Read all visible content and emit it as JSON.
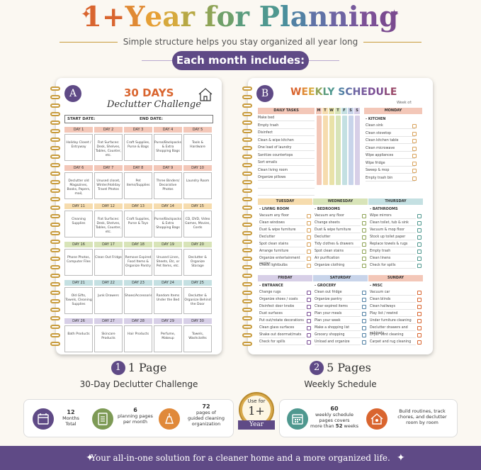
{
  "header": {
    "title_chars": [
      {
        "t": "1",
        "c": "#d9652f"
      },
      {
        "t": "+",
        "c": "#d9652f"
      },
      {
        "t": "Y",
        "c": "#e08a34"
      },
      {
        "t": "e",
        "c": "#e6a037"
      },
      {
        "t": "a",
        "c": "#d6a93d"
      },
      {
        "t": "r",
        "c": "#b7a844"
      },
      {
        "t": " ",
        "c": "#000"
      },
      {
        "t": "f",
        "c": "#8fa457"
      },
      {
        "t": "o",
        "c": "#6fa06a"
      },
      {
        "t": "r",
        "c": "#5b9c7e"
      },
      {
        "t": " ",
        "c": "#000"
      },
      {
        "t": "P",
        "c": "#4f988f"
      },
      {
        "t": "l",
        "c": "#4b8f9c"
      },
      {
        "t": "a",
        "c": "#5281a4"
      },
      {
        "t": "n",
        "c": "#6072a6"
      },
      {
        "t": "n",
        "c": "#6d64a2"
      },
      {
        "t": "i",
        "c": "#76599c"
      },
      {
        "t": "n",
        "c": "#7c5096"
      },
      {
        "t": "g",
        "c": "#7a4b90"
      }
    ],
    "subtitle": "Simple structure helps you stay organized all year long",
    "pill": "Each month includes:"
  },
  "bookA": {
    "badge": "A",
    "title": "30 DAYS",
    "subtitle": "Declutter Challenge",
    "start_label": "START DATE:",
    "end_label": "END DATE:",
    "rows": [
      {
        "color": "#f3c7b8",
        "days": [
          "DAY 1",
          "DAY 2",
          "DAY 3",
          "DAY 4",
          "DAY 5"
        ],
        "tasks": [
          "Holiday Closet / Entryway",
          "Flat Surfaces: Desk, Shelves, Tables, Counter, etc.",
          "Craft Supplies, Purse & Bags",
          "Purse/Backpacks & Extra Shopping Bags",
          "Tools & Hardware"
        ]
      },
      {
        "color": "#f3c7b8",
        "days": [
          "DAY 6",
          "DAY 7",
          "DAY 8",
          "DAY 9",
          "DAY 10"
        ],
        "tasks": [
          "Declutter old Magazines, Books, Papers, mail,",
          "Unused closet, Winter/Holiday Travel Photos",
          "Pet items/Supplies",
          "Three Binders/ Decorative Photos",
          "Laundry Room"
        ]
      },
      {
        "color": "#f6dcae",
        "days": [
          "DAY 11",
          "DAY 12",
          "DAY 13",
          "DAY 14",
          "DAY 15"
        ],
        "tasks": [
          "Cleaning Supplies",
          "Flat Surfaces: Desk, Shelves, Tables, Counter, etc.",
          "Craft Supplies, Purse & Toys",
          "Purse/Backpacks & Extra Shopping Bags",
          "CD, DVD, Video Games, Movies, Cords"
        ]
      },
      {
        "color": "#d8e4b8",
        "days": [
          "DAY 16",
          "DAY 17",
          "DAY 18",
          "DAY 19",
          "DAY 20"
        ],
        "tasks": [
          "Phone Photos, Computer Files",
          "Clean Out Fridge",
          "Remove Expired Food Items & Organize Pantry",
          "Unused Linen, Sheets, Etc, or Pet Items, etc.",
          "Declutter & Organize Storage"
        ]
      },
      {
        "color": "#c4e0e2",
        "days": [
          "DAY 21",
          "DAY 22",
          "DAY 23",
          "DAY 24",
          "DAY 25"
        ],
        "tasks": [
          "Old Gifts, Towels, Cleaning Supplies",
          "Junk Drawers",
          "Shoes/Accessories",
          "Random Items Under the Bed",
          "Declutter & Organize Behind the Door"
        ]
      },
      {
        "color": "#d7cfe7",
        "days": [
          "DAY 26",
          "DAY 27",
          "DAY 28",
          "DAY 29",
          "DAY 30"
        ],
        "tasks": [
          "Bath Products",
          "Skincare Products",
          "Hair Products",
          "Perfume, Makeup",
          "Towels, Washcloths"
        ]
      }
    ]
  },
  "bookB": {
    "badge": "B",
    "title_chars": [
      {
        "t": "W",
        "c": "#d9652f"
      },
      {
        "t": "E",
        "c": "#e08a34"
      },
      {
        "t": "E",
        "c": "#d6a93d"
      },
      {
        "t": "K",
        "c": "#8fa457"
      },
      {
        "t": "L",
        "c": "#5b9c7e"
      },
      {
        "t": "Y",
        "c": "#4f988f"
      },
      {
        "t": " ",
        "c": "#000"
      },
      {
        "t": "S",
        "c": "#5281a4"
      },
      {
        "t": "C",
        "c": "#6072a6"
      },
      {
        "t": "H",
        "c": "#6d64a2"
      },
      {
        "t": "E",
        "c": "#76599c"
      },
      {
        "t": "D",
        "c": "#7c5096"
      },
      {
        "t": "U",
        "c": "#7a4b90"
      },
      {
        "t": "L",
        "c": "#8a4a7a"
      },
      {
        "t": "E",
        "c": "#9a4a6a"
      }
    ],
    "week_of": "Week of:",
    "daily_header": "DAILY TASKS",
    "weekdays": [
      "M",
      "T",
      "W",
      "T",
      "F",
      "S",
      "S"
    ],
    "weekday_colors": [
      "#f3c7b8",
      "#f6dcae",
      "#e9e2a8",
      "#d8e4b8",
      "#c4e0e2",
      "#c8d4ea",
      "#d7cfe7"
    ],
    "daily_tasks": [
      "Make bed",
      "Empty trash",
      "Disinfect",
      "Clean & wipe kitchen",
      "One load of laundry",
      "Sanitize countertops",
      "Sort emails",
      "Clean living room",
      "Organize pillows"
    ],
    "monday": {
      "label": "MONDAY",
      "sub": "- KITCHEN",
      "items": [
        "Clean sink",
        "Clean stovetop",
        "Clean kitchen table",
        "Clean microwave",
        "Wipe appliances",
        "Wipe fridge",
        "Sweep & mop",
        "Empty trash bin"
      ]
    },
    "tuesday": {
      "label": "TUESDAY",
      "sub": "- LIVING ROOM",
      "items": [
        "Vacuum any floor",
        "Clean windows",
        "Dust & wipe furniture",
        "Declutter",
        "Spot clean stains",
        "Arrange furniture",
        "Organize entertainment center",
        "Check lightbulbs"
      ]
    },
    "wednesday": {
      "label": "WEDNESDAY",
      "sub": "- BEDROOMS",
      "items": [
        "Vacuum any floor",
        "Change sheets",
        "Dust & wipe furniture",
        "Declutter",
        "Tidy clothes & drawers",
        "Spot clean stains",
        "Air purification",
        "Organize clothing"
      ]
    },
    "thursday": {
      "label": "THURSDAY",
      "sub": "- BATHROOMS",
      "items": [
        "Wipe mirrors",
        "Clean toilet, tub & sink",
        "Vacuum & mop floor",
        "Stock up toilet paper",
        "Replace towels & rugs",
        "Empty trash",
        "Clean linens",
        "Check for spills"
      ]
    },
    "friday": {
      "label": "FRIDAY",
      "sub": "- ENTRANCE",
      "items": [
        "Change rugs",
        "Organize shoes / coats",
        "Disinfect door knobs",
        "Dust surfaces",
        "Put out/rotate decorations",
        "Clean glass surfaces",
        "Shake out doormat/mats",
        "Check for spills"
      ]
    },
    "saturday": {
      "label": "SATURDAY",
      "sub": "- GROCERY",
      "items": [
        "Clean out fridge",
        "Organize pantry",
        "Clear expired items",
        "Plan your meals",
        "Plan your week",
        "Make a shopping list",
        "Grocery shopping",
        "Unload and organize"
      ]
    },
    "sunday": {
      "label": "SUNDAY",
      "sub": "- MISC",
      "items": [
        "Vacuum car",
        "Clean blinds",
        "Clean hallways",
        "Play list / rewind",
        "Under furniture cleaning",
        "Declutter drawers and cabinets",
        "Dryer vent cleaning",
        "Carpet and rug cleaning"
      ]
    }
  },
  "captions": {
    "a_num": "1",
    "a_big": "1 Page",
    "a_small": "30-Day Declutter Challenge",
    "b_num": "2",
    "b_big": "5 Pages",
    "b_small": "Weekly Schedule"
  },
  "stats": {
    "s1_num": "12",
    "s1_text": "Months Total",
    "s2_num": "6",
    "s2_text1": "planning pages",
    "s2_text2": "per month",
    "s3_num": "72",
    "s3_text1": "pages of",
    "s3_text2": "guided cleaning",
    "s3_text3": "organization",
    "medal_top": "Use for",
    "medal_mid": "1+",
    "medal_bottom": "Year",
    "s4_num": "60",
    "s4_text1": "weekly schedule",
    "s4_text2": "pages covers",
    "s4_text3_a": "more than ",
    "s4_text3_b": "52",
    "s4_text3_c": " weeks",
    "s5_text1": "Build routines, track",
    "s5_text2": "chores, and declutter",
    "s5_text3": "room by room"
  },
  "footer": {
    "text": "Your all-in-one solution for a cleaner home and a more organized life."
  },
  "colors": {
    "purple": "#5f4a86",
    "gold": "#c89b3c"
  }
}
